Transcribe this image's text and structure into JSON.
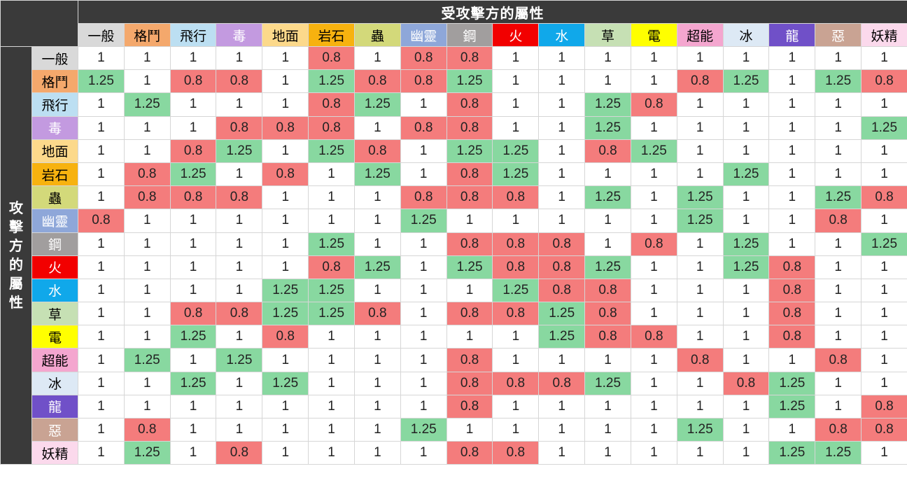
{
  "title_top": "受攻擊方的屬性",
  "title_side": "攻\n擊\n方\n的\n屬\n性",
  "types": [
    {
      "name": "一般",
      "color": "#d9d9d9",
      "text": "#000000"
    },
    {
      "name": "格鬥",
      "color": "#f4a86c",
      "text": "#000000"
    },
    {
      "name": "飛行",
      "color": "#bcdff2",
      "text": "#000000"
    },
    {
      "name": "毒",
      "color": "#c39ae0",
      "text": "#ffffff"
    },
    {
      "name": "地面",
      "color": "#fcd98b",
      "text": "#000000"
    },
    {
      "name": "岩石",
      "color": "#f7b20f",
      "text": "#000000"
    },
    {
      "name": "蟲",
      "color": "#d3d97a",
      "text": "#000000"
    },
    {
      "name": "幽靈",
      "color": "#8ea7d9",
      "text": "#ffffff"
    },
    {
      "name": "鋼",
      "color": "#a19e9e",
      "text": "#ffffff"
    },
    {
      "name": "火",
      "color": "#f20000",
      "text": "#ffffff"
    },
    {
      "name": "水",
      "color": "#10a8ea",
      "text": "#ffffff"
    },
    {
      "name": "草",
      "color": "#c6e0b4",
      "text": "#000000"
    },
    {
      "name": "電",
      "color": "#ffff00",
      "text": "#000000"
    },
    {
      "name": "超能",
      "color": "#f4a6cf",
      "text": "#000000"
    },
    {
      "name": "冰",
      "color": "#dde9f5",
      "text": "#000000"
    },
    {
      "name": "龍",
      "color": "#7050c8",
      "text": "#ffffff"
    },
    {
      "name": "惡",
      "color": "#c9a393",
      "text": "#ffffff"
    },
    {
      "name": "妖精",
      "color": "#fbd9ec",
      "text": "#000000"
    }
  ],
  "matrix": [
    [
      "1",
      "1",
      "1",
      "1",
      "1",
      "0.8",
      "1",
      "0.8",
      "0.8",
      "1",
      "1",
      "1",
      "1",
      "1",
      "1",
      "1",
      "1",
      "1"
    ],
    [
      "1.25",
      "1",
      "0.8",
      "0.8",
      "1",
      "1.25",
      "0.8",
      "0.8",
      "1.25",
      "1",
      "1",
      "1",
      "1",
      "0.8",
      "1.25",
      "1",
      "1.25",
      "0.8"
    ],
    [
      "1",
      "1.25",
      "1",
      "1",
      "1",
      "0.8",
      "1.25",
      "1",
      "0.8",
      "1",
      "1",
      "1.25",
      "0.8",
      "1",
      "1",
      "1",
      "1",
      "1"
    ],
    [
      "1",
      "1",
      "1",
      "0.8",
      "0.8",
      "0.8",
      "1",
      "0.8",
      "0.8",
      "1",
      "1",
      "1.25",
      "1",
      "1",
      "1",
      "1",
      "1",
      "1.25"
    ],
    [
      "1",
      "1",
      "0.8",
      "1.25",
      "1",
      "1.25",
      "0.8",
      "1",
      "1.25",
      "1.25",
      "1",
      "0.8",
      "1.25",
      "1",
      "1",
      "1",
      "1",
      "1"
    ],
    [
      "1",
      "0.8",
      "1.25",
      "1",
      "0.8",
      "1",
      "1.25",
      "1",
      "0.8",
      "1.25",
      "1",
      "1",
      "1",
      "1",
      "1.25",
      "1",
      "1",
      "1"
    ],
    [
      "1",
      "0.8",
      "0.8",
      "0.8",
      "1",
      "1",
      "1",
      "0.8",
      "0.8",
      "0.8",
      "1",
      "1.25",
      "1",
      "1.25",
      "1",
      "1",
      "1.25",
      "0.8"
    ],
    [
      "0.8",
      "1",
      "1",
      "1",
      "1",
      "1",
      "1",
      "1.25",
      "1",
      "1",
      "1",
      "1",
      "1",
      "1.25",
      "1",
      "1",
      "0.8",
      "1"
    ],
    [
      "1",
      "1",
      "1",
      "1",
      "1",
      "1.25",
      "1",
      "1",
      "0.8",
      "0.8",
      "0.8",
      "1",
      "0.8",
      "1",
      "1.25",
      "1",
      "1",
      "1.25"
    ],
    [
      "1",
      "1",
      "1",
      "1",
      "1",
      "0.8",
      "1.25",
      "1",
      "1.25",
      "0.8",
      "0.8",
      "1.25",
      "1",
      "1",
      "1.25",
      "0.8",
      "1",
      "1"
    ],
    [
      "1",
      "1",
      "1",
      "1",
      "1.25",
      "1.25",
      "1",
      "1",
      "1",
      "1.25",
      "0.8",
      "0.8",
      "1",
      "1",
      "1",
      "0.8",
      "1",
      "1"
    ],
    [
      "1",
      "1",
      "0.8",
      "0.8",
      "1.25",
      "1.25",
      "0.8",
      "1",
      "0.8",
      "0.8",
      "1.25",
      "0.8",
      "1",
      "1",
      "1",
      "0.8",
      "1",
      "1"
    ],
    [
      "1",
      "1",
      "1.25",
      "1",
      "0.8",
      "1",
      "1",
      "1",
      "1",
      "1",
      "1.25",
      "0.8",
      "0.8",
      "1",
      "1",
      "0.8",
      "1",
      "1"
    ],
    [
      "1",
      "1.25",
      "1",
      "1.25",
      "1",
      "1",
      "1",
      "1",
      "0.8",
      "1",
      "1",
      "1",
      "1",
      "0.8",
      "1",
      "1",
      "0.8",
      "1"
    ],
    [
      "1",
      "1",
      "1.25",
      "1",
      "1.25",
      "1",
      "1",
      "1",
      "0.8",
      "0.8",
      "0.8",
      "1.25",
      "1",
      "1",
      "0.8",
      "1.25",
      "1",
      "1"
    ],
    [
      "1",
      "1",
      "1",
      "1",
      "1",
      "1",
      "1",
      "1",
      "0.8",
      "1",
      "1",
      "1",
      "1",
      "1",
      "1",
      "1.25",
      "1",
      "0.8"
    ],
    [
      "1",
      "0.8",
      "1",
      "1",
      "1",
      "1",
      "1",
      "1.25",
      "1",
      "1",
      "1",
      "1",
      "1",
      "1.25",
      "1",
      "1",
      "0.8",
      "0.8"
    ],
    [
      "1",
      "1.25",
      "1",
      "0.8",
      "1",
      "1",
      "1",
      "1",
      "0.8",
      "0.8",
      "1",
      "1",
      "1",
      "1",
      "1",
      "1.25",
      "1.25",
      "1"
    ]
  ],
  "value_colors": {
    "up": "#88d8a0",
    "down": "#f47c7c",
    "neutral": "#ffffff"
  }
}
